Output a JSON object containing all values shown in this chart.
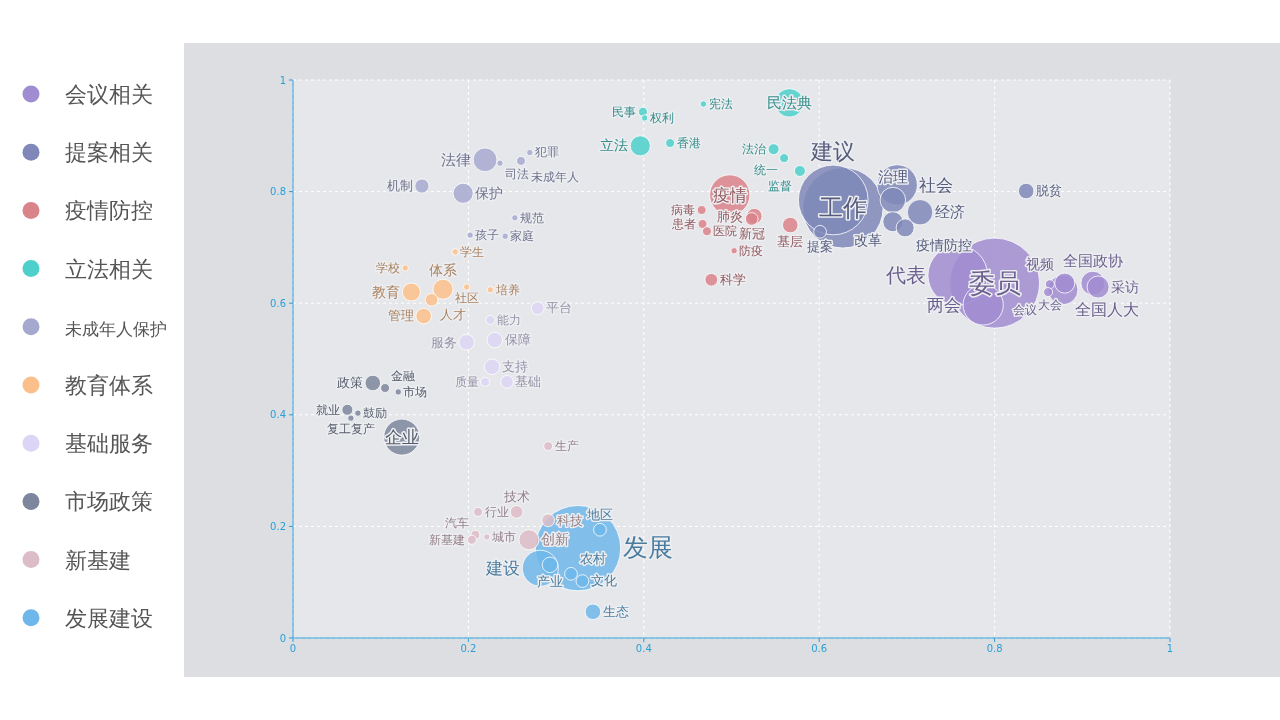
{
  "chart_data": {
    "type": "bubble",
    "xlim": [
      0,
      1
    ],
    "ylim": [
      0,
      1
    ],
    "xticks": [
      0,
      0.2,
      0.4,
      0.6,
      0.8,
      1
    ],
    "yticks": [
      0,
      0.2,
      0.4,
      0.6,
      0.8,
      1
    ],
    "grid": true,
    "legend": "left",
    "marker": "circle",
    "series": [
      {
        "name": "会议相关",
        "color": "#a08cd0",
        "x": [
          0.8,
          0.758,
          0.787,
          0.878,
          0.912,
          0.863,
          0.861,
          0.88,
          0.918
        ],
        "values": [
          0.636,
          0.65,
          0.597,
          0.624,
          0.636,
          0.634,
          0.62,
          0.636,
          0.629
        ],
        "sizes": [
          1,
          0.44,
          0.2,
          0.11,
          0.07,
          0.01,
          0.01,
          0.05,
          0.06
        ],
        "value_labels": [
          "委员",
          "代表",
          "两会",
          "全国人大",
          "全国政协",
          "大会",
          "会议",
          "视频",
          "采访"
        ]
      },
      {
        "name": "提案相关",
        "color": "#7f88b8",
        "x": [
          0.627,
          0.616,
          0.601,
          0.689,
          0.684,
          0.715,
          0.684,
          0.698,
          0.836
        ],
        "values": [
          0.771,
          0.785,
          0.728,
          0.812,
          0.785,
          0.763,
          0.746,
          0.735,
          0.801
        ],
        "sizes": [
          0.8,
          0.6,
          0.02,
          0.2,
          0.08,
          0.08,
          0.05,
          0.04,
          0.03
        ],
        "value_labels": [
          "工作",
          "建议",
          "提案",
          "社会",
          "治理",
          "经济",
          "改革",
          "疫情防控",
          "脱贫"
        ]
      },
      {
        "name": "疫情防控",
        "color": "#d9838a",
        "x": [
          0.498,
          0.466,
          0.467,
          0.472,
          0.526,
          0.523,
          0.567,
          0.503,
          0.477
        ],
        "values": [
          0.794,
          0.767,
          0.742,
          0.729,
          0.756,
          0.751,
          0.74,
          0.694,
          0.642
        ],
        "sizes": [
          0.2,
          0.01,
          0.01,
          0.01,
          0.03,
          0.02,
          0.03,
          0.005,
          0.02
        ],
        "value_labels": [
          "疫情",
          "病毒",
          "患者",
          "医院",
          "肺炎",
          "新冠",
          "基层",
          "防疫",
          "科学"
        ]
      },
      {
        "name": "立法相关",
        "color": "#4ecfcb",
        "x": [
          0.566,
          0.396,
          0.468,
          0.399,
          0.401,
          0.43,
          0.548,
          0.56,
          0.578
        ],
        "values": [
          0.959,
          0.882,
          0.957,
          0.943,
          0.932,
          0.887,
          0.876,
          0.86,
          0.837
        ],
        "sizes": [
          0.1,
          0.05,
          0.005,
          0.01,
          0.005,
          0.01,
          0.015,
          0.01,
          0.015
        ],
        "value_labels": [
          "民法典",
          "立法",
          "宪法",
          "民事",
          "权利",
          "香港",
          "法治",
          "统一",
          "监督"
        ]
      },
      {
        "name": "未成年人保护",
        "color": "#a6a9cf",
        "x": [
          0.219,
          0.236,
          0.27,
          0.26,
          0.147,
          0.194,
          0.253,
          0.202,
          0.242
        ],
        "values": [
          0.857,
          0.851,
          0.87,
          0.855,
          0.81,
          0.797,
          0.753,
          0.722,
          0.72
        ],
        "sizes": [
          0.07,
          0.005,
          0.005,
          0.01,
          0.025,
          0.05,
          0.005,
          0.005,
          0.005
        ],
        "value_labels": [
          "法律",
          "司法",
          "犯罪",
          "未成年人",
          "机制",
          "保护",
          "规范",
          "孩子",
          "家庭"
        ]
      },
      {
        "name": "教育体系",
        "color": "#fbbf8b",
        "x": [
          0.171,
          0.135,
          0.158,
          0.149,
          0.185,
          0.128,
          0.198,
          0.225
        ],
        "values": [
          0.625,
          0.62,
          0.606,
          0.577,
          0.692,
          0.663,
          0.629,
          0.624
        ],
        "sizes": [
          0.05,
          0.04,
          0.02,
          0.03,
          0.005,
          0.005,
          0.005,
          0.005
        ],
        "value_labels": [
          "体系",
          "教育",
          "人才",
          "管理",
          "学生",
          "学校",
          "社区",
          "培养"
        ]
      },
      {
        "name": "基础服务",
        "color": "#ddd5f5",
        "x": [
          0.198,
          0.23,
          0.225,
          0.279,
          0.227,
          0.219,
          0.244
        ],
        "values": [
          0.53,
          0.534,
          0.57,
          0.591,
          0.486,
          0.459,
          0.459
        ],
        "sizes": [
          0.03,
          0.03,
          0.01,
          0.02,
          0.03,
          0.01,
          0.02
        ],
        "value_labels": [
          "服务",
          "保障",
          "能力",
          "平台",
          "支持",
          "质量",
          "基础"
        ]
      },
      {
        "name": "市场政策",
        "color": "#7d869c",
        "x": [
          0.124,
          0.091,
          0.105,
          0.12,
          0.062,
          0.074,
          0.066
        ],
        "values": [
          0.36,
          0.457,
          0.448,
          0.441,
          0.409,
          0.403,
          0.394
        ],
        "sizes": [
          0.16,
          0.03,
          0.01,
          0.005,
          0.015,
          0.005,
          0.005
        ],
        "value_labels": [
          "企业",
          "政策",
          "金融",
          "市场",
          "就业",
          "鼓励",
          "复工复产"
        ]
      },
      {
        "name": "新基建",
        "color": "#dcbcc8",
        "x": [
          0.291,
          0.211,
          0.255,
          0.208,
          0.221,
          0.204,
          0.269,
          0.291
        ],
        "values": [
          0.344,
          0.226,
          0.226,
          0.185,
          0.181,
          0.176,
          0.176,
          0.211
        ],
        "sizes": [
          0.01,
          0.01,
          0.02,
          0.01,
          0.005,
          0.01,
          0.05,
          0.02
        ],
        "value_labels": [
          "生产",
          "行业",
          "技术",
          "汽车",
          "城市",
          "新基建",
          "创新",
          "科技"
        ]
      },
      {
        "name": "发展建设",
        "color": "#6fb7ea",
        "x": [
          0.325,
          0.282,
          0.293,
          0.35,
          0.317,
          0.33,
          0.342
        ],
        "values": [
          0.161,
          0.125,
          0.131,
          0.194,
          0.115,
          0.102,
          0.047
        ],
        "sizes": [
          0.9,
          0.16,
          0.03,
          0.02,
          0.02,
          0.02,
          0.03
        ],
        "value_labels": [
          "发展",
          "建设",
          "产业",
          "地区",
          "农村",
          "文化",
          "生态"
        ]
      }
    ]
  }
}
